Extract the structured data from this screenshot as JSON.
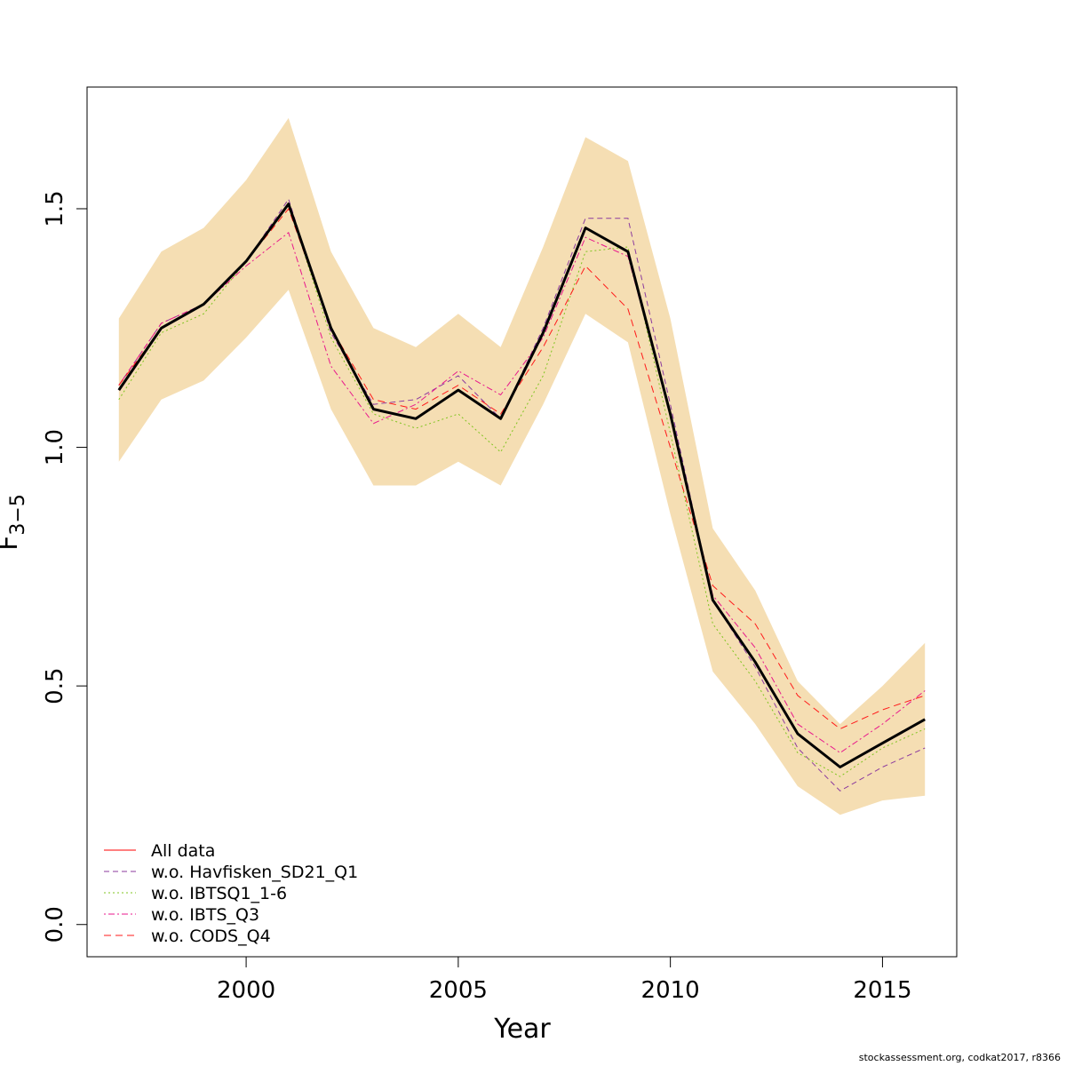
{
  "footer": "stockassessment.org, codkat2017, r8366",
  "chart_data": {
    "type": "line",
    "xlabel": "Year",
    "ylabel": "F",
    "ylabel_subscript": "3−5",
    "xlim": [
      1996.25,
      2016.75
    ],
    "ylim": [
      -0.0675,
      1.755
    ],
    "x_ticks": [
      2000,
      2005,
      2010,
      2015
    ],
    "y_ticks": [
      0.0,
      0.5,
      1.0,
      1.5
    ],
    "y_tick_labels": [
      "0.0",
      "0.5",
      "1.0",
      "1.5"
    ],
    "grid": false,
    "legend_position": "bottom-left",
    "x": [
      1997,
      1998,
      1999,
      2000,
      2001,
      2002,
      2003,
      2004,
      2005,
      2006,
      2007,
      2008,
      2009,
      2010,
      2011,
      2012,
      2013,
      2014,
      2015,
      2016
    ],
    "band": {
      "color": "#F5DEB3",
      "lower": [
        0.97,
        1.1,
        1.14,
        1.23,
        1.33,
        1.08,
        0.92,
        0.92,
        0.97,
        0.92,
        1.09,
        1.28,
        1.22,
        0.86,
        0.53,
        0.42,
        0.29,
        0.23,
        0.26,
        0.27
      ],
      "upper": [
        1.27,
        1.41,
        1.46,
        1.56,
        1.69,
        1.41,
        1.25,
        1.21,
        1.28,
        1.21,
        1.42,
        1.65,
        1.6,
        1.27,
        0.83,
        0.7,
        0.51,
        0.42,
        0.5,
        0.59
      ]
    },
    "main_series": {
      "color": "#000000",
      "values": [
        1.12,
        1.25,
        1.3,
        1.39,
        1.51,
        1.25,
        1.08,
        1.06,
        1.12,
        1.06,
        1.24,
        1.46,
        1.41,
        1.07,
        0.68,
        0.55,
        0.4,
        0.33,
        0.38,
        0.43
      ]
    },
    "series": [
      {
        "name": "All data",
        "color": "#FF0000",
        "dash": "",
        "values": [
          1.12,
          1.25,
          1.3,
          1.39,
          1.51,
          1.25,
          1.08,
          1.06,
          1.12,
          1.06,
          1.24,
          1.46,
          1.41,
          1.07,
          0.68,
          0.55,
          0.4,
          0.33,
          0.38,
          0.43
        ]
      },
      {
        "name": "w.o. Havfisken_SD21_Q1",
        "color": "#8B3A9E",
        "dash": "6,4",
        "values": [
          1.13,
          1.26,
          1.3,
          1.39,
          1.52,
          1.24,
          1.09,
          1.1,
          1.15,
          1.06,
          1.25,
          1.48,
          1.48,
          1.09,
          0.68,
          0.54,
          0.37,
          0.28,
          0.33,
          0.37
        ]
      },
      {
        "name": "w.o. IBTSQ1_1-6",
        "color": "#7FC41F",
        "dash": "2,3",
        "values": [
          1.1,
          1.24,
          1.28,
          1.39,
          1.51,
          1.23,
          1.07,
          1.04,
          1.07,
          0.99,
          1.15,
          1.41,
          1.42,
          1.03,
          0.63,
          0.51,
          0.36,
          0.31,
          0.37,
          0.41
        ]
      },
      {
        "name": "w.o. IBTS_Q3",
        "color": "#E8178C",
        "dash": "2,3,7,3",
        "values": [
          1.13,
          1.26,
          1.3,
          1.38,
          1.45,
          1.17,
          1.05,
          1.09,
          1.16,
          1.11,
          1.23,
          1.44,
          1.4,
          1.07,
          0.69,
          0.58,
          0.42,
          0.36,
          0.42,
          0.49
        ]
      },
      {
        "name": "w.o. CODS_Q4",
        "color": "#FF1A1A",
        "dash": "8,5",
        "values": [
          1.13,
          1.25,
          1.3,
          1.39,
          1.5,
          1.25,
          1.1,
          1.08,
          1.13,
          1.07,
          1.21,
          1.38,
          1.29,
          1.0,
          0.71,
          0.63,
          0.48,
          0.41,
          0.45,
          0.48
        ]
      }
    ]
  }
}
